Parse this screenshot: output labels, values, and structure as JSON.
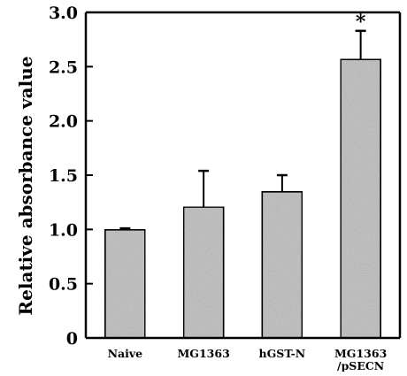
{
  "chart_data": {
    "type": "bar",
    "title": "",
    "xlabel": "",
    "ylabel": "Relative absorbance value",
    "ylim": [
      0,
      3.0
    ],
    "yticks": [
      "0",
      "0.5",
      "1.0",
      "1.5",
      "2.0",
      "2.5",
      "3.0"
    ],
    "categories": [
      [
        "Naive"
      ],
      [
        "MG1363"
      ],
      [
        "hGST-N"
      ],
      [
        "MG1363",
        "/pSECN"
      ]
    ],
    "values": [
      1.0,
      1.21,
      1.35,
      2.57
    ],
    "errors": [
      0.01,
      0.33,
      0.15,
      0.26
    ],
    "annotations": [
      "",
      "",
      "",
      "*"
    ],
    "grid": false,
    "legend": "none",
    "colors": {
      "bar_fill": "#c4c4c4",
      "bar_stroke": "#000000",
      "axis": "#000000"
    }
  }
}
